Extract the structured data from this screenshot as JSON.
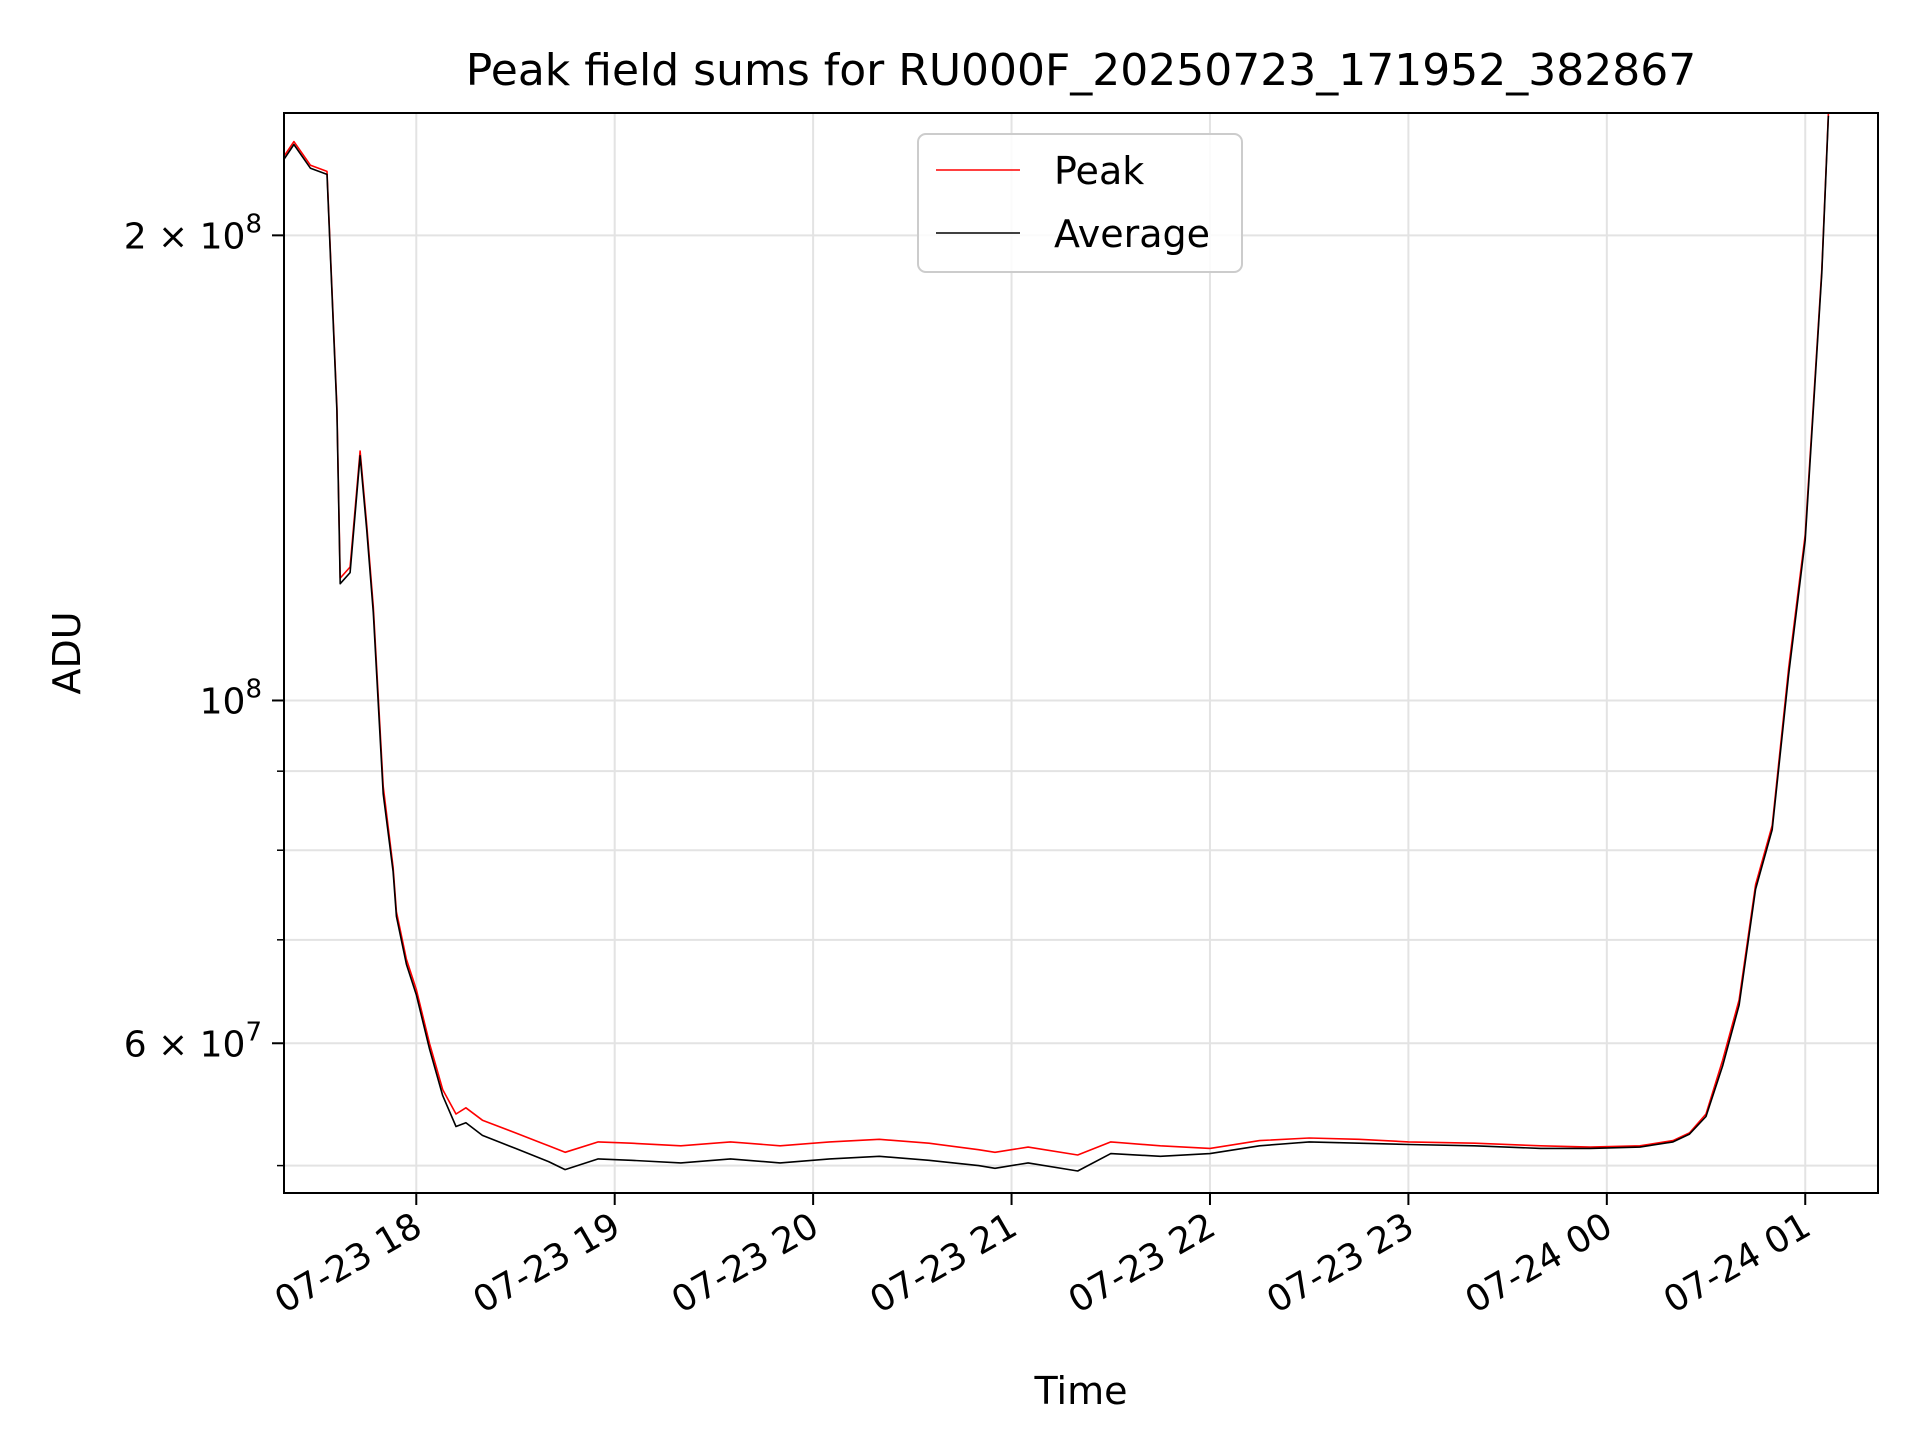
{
  "chart_data": {
    "type": "line",
    "title": "Peak field sums for RU000F_20250723_171952_382867",
    "xlabel": "Time",
    "ylabel": "ADU",
    "x_scale": "time",
    "y_scale": "log",
    "xlim": [
      "07-23 17:20",
      "07-24 01:22"
    ],
    "ylim": [
      48000000,
      240000000
    ],
    "grid": true,
    "legend_position": "top-center",
    "x_ticks": [
      "07-23 18",
      "07-23 19",
      "07-23 20",
      "07-23 21",
      "07-23 22",
      "07-23 23",
      "07-24 00",
      "07-24 01"
    ],
    "y_ticks_major": [
      {
        "value": 200000000,
        "label": "2 × 10^8"
      },
      {
        "value": 100000000,
        "label": "10^8"
      },
      {
        "value": 60000000,
        "label": "6 × 10^7"
      }
    ],
    "y_ticks_minor": [
      50000000,
      70000000,
      80000000,
      90000000
    ],
    "series": [
      {
        "name": "Peak",
        "color": "#ff0000",
        "x": [
          "07-23 17:20",
          "07-23 17:23",
          "07-23 17:28",
          "07-23 17:33",
          "07-23 17:36",
          "07-23 17:37",
          "07-23 17:40",
          "07-23 17:43",
          "07-23 17:45",
          "07-23 17:47",
          "07-23 17:50",
          "07-23 17:53",
          "07-23 17:54",
          "07-23 17:57",
          "07-23 18:00",
          "07-23 18:04",
          "07-23 18:08",
          "07-23 18:12",
          "07-23 18:15",
          "07-23 18:20",
          "07-23 18:30",
          "07-23 18:40",
          "07-23 18:45",
          "07-23 18:55",
          "07-23 19:05",
          "07-23 19:20",
          "07-23 19:35",
          "07-23 19:50",
          "07-23 20:05",
          "07-23 20:20",
          "07-23 20:35",
          "07-23 20:50",
          "07-23 20:55",
          "07-23 21:05",
          "07-23 21:20",
          "07-23 21:30",
          "07-23 21:45",
          "07-23 22:00",
          "07-23 22:15",
          "07-23 22:30",
          "07-23 22:45",
          "07-23 23:00",
          "07-23 23:20",
          "07-23 23:40",
          "07-23 23:55",
          "07-24 00:10",
          "07-24 00:20",
          "07-24 00:25",
          "07-24 00:30",
          "07-24 00:35",
          "07-24 00:40",
          "07-24 00:45",
          "07-24 00:50",
          "07-24 00:55",
          "07-24 01:00",
          "07-24 01:05",
          "07-24 01:07"
        ],
        "values": [
          225000000,
          230000000,
          222000000,
          220000000,
          155000000,
          120000000,
          122000000,
          145000000,
          130000000,
          115000000,
          88000000,
          78000000,
          73000000,
          68000000,
          65000000,
          60000000,
          56000000,
          54000000,
          54500000,
          53500000,
          52500000,
          51500000,
          51000000,
          51800000,
          51700000,
          51500000,
          51800000,
          51500000,
          51800000,
          52000000,
          51700000,
          51200000,
          51000000,
          51400000,
          50800000,
          51800000,
          51500000,
          51300000,
          51900000,
          52100000,
          52000000,
          51800000,
          51700000,
          51500000,
          51400000,
          51500000,
          51900000,
          52500000,
          54000000,
          58500000,
          64000000,
          76000000,
          83000000,
          105000000,
          128000000,
          190000000,
          240000000
        ]
      },
      {
        "name": "Average",
        "color": "#000000",
        "x": [
          "07-23 17:20",
          "07-23 17:23",
          "07-23 17:28",
          "07-23 17:33",
          "07-23 17:36",
          "07-23 17:37",
          "07-23 17:40",
          "07-23 17:43",
          "07-23 17:45",
          "07-23 17:47",
          "07-23 17:50",
          "07-23 17:53",
          "07-23 17:54",
          "07-23 17:57",
          "07-23 18:00",
          "07-23 18:04",
          "07-23 18:08",
          "07-23 18:12",
          "07-23 18:15",
          "07-23 18:20",
          "07-23 18:30",
          "07-23 18:40",
          "07-23 18:45",
          "07-23 18:55",
          "07-23 19:05",
          "07-23 19:20",
          "07-23 19:35",
          "07-23 19:50",
          "07-23 20:05",
          "07-23 20:20",
          "07-23 20:35",
          "07-23 20:50",
          "07-23 20:55",
          "07-23 21:05",
          "07-23 21:20",
          "07-23 21:30",
          "07-23 21:45",
          "07-23 22:00",
          "07-23 22:15",
          "07-23 22:30",
          "07-23 22:45",
          "07-23 23:00",
          "07-23 23:20",
          "07-23 23:40",
          "07-23 23:55",
          "07-24 00:10",
          "07-24 00:20",
          "07-24 00:25",
          "07-24 00:30",
          "07-24 00:35",
          "07-24 00:40",
          "07-24 00:45",
          "07-24 00:50",
          "07-24 00:55",
          "07-24 01:00",
          "07-24 01:05",
          "07-24 01:07"
        ],
        "values": [
          224000000,
          229000000,
          221000000,
          219000000,
          154000000,
          119000000,
          121000000,
          144000000,
          129000000,
          114000000,
          87000000,
          77500000,
          72500000,
          67500000,
          64500000,
          59500000,
          55500000,
          53000000,
          53300000,
          52300000,
          51300000,
          50300000,
          49700000,
          50500000,
          50400000,
          50200000,
          50500000,
          50200000,
          50500000,
          50700000,
          50400000,
          50000000,
          49800000,
          50200000,
          49600000,
          50900000,
          50700000,
          50900000,
          51500000,
          51800000,
          51700000,
          51600000,
          51500000,
          51300000,
          51300000,
          51400000,
          51800000,
          52400000,
          53800000,
          58000000,
          63500000,
          75500000,
          82500000,
          104000000,
          127000000,
          189000000,
          239000000
        ]
      }
    ]
  }
}
